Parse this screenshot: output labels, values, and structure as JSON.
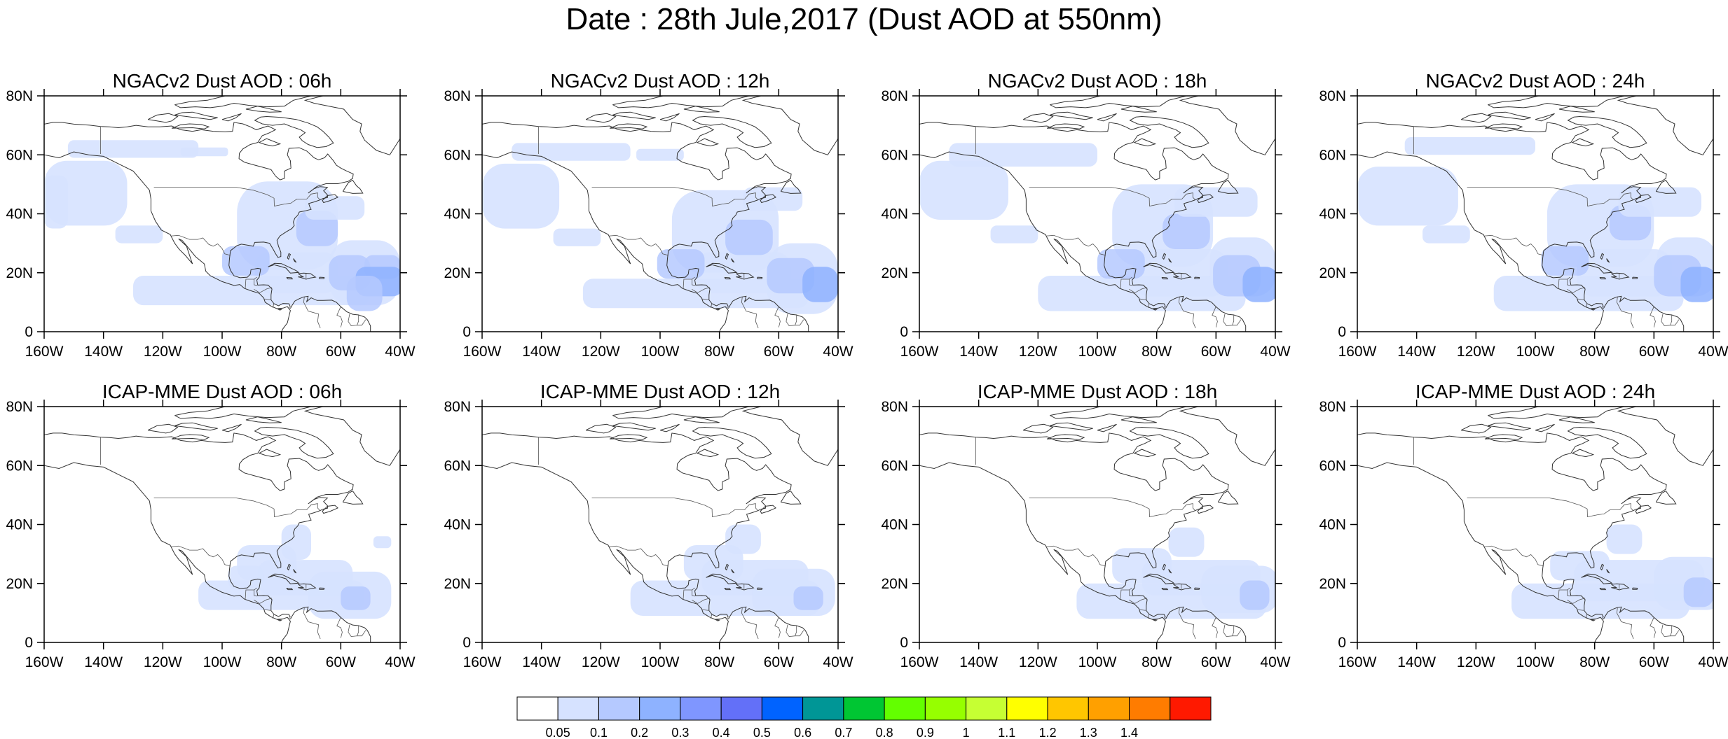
{
  "title": "Date : 28th Jule,2017 (Dust AOD at 550nm)",
  "axes": {
    "lon_ticks": [
      "160W",
      "140W",
      "120W",
      "100W",
      "80W",
      "60W",
      "40W"
    ],
    "lat_ticks": [
      "80N",
      "60N",
      "40N",
      "20N",
      "0"
    ],
    "lon_range": [
      -160,
      -40
    ],
    "lat_range": [
      0,
      80
    ]
  },
  "panels": [
    {
      "title": "NGACv2 Dust AOD : 06h",
      "model": "NGACv2",
      "hour": "06h"
    },
    {
      "title": "NGACv2 Dust AOD : 12h",
      "model": "NGACv2",
      "hour": "12h"
    },
    {
      "title": "NGACv2 Dust AOD : 18h",
      "model": "NGACv2",
      "hour": "18h"
    },
    {
      "title": "NGACv2 Dust AOD : 24h",
      "model": "NGACv2",
      "hour": "24h"
    },
    {
      "title": "ICAP-MME Dust AOD : 06h",
      "model": "ICAP-MME",
      "hour": "06h"
    },
    {
      "title": "ICAP-MME Dust AOD : 12h",
      "model": "ICAP-MME",
      "hour": "12h"
    },
    {
      "title": "ICAP-MME Dust AOD : 18h",
      "model": "ICAP-MME",
      "hour": "18h"
    },
    {
      "title": "ICAP-MME Dust AOD : 24h",
      "model": "ICAP-MME",
      "hour": "24h"
    }
  ],
  "colorbar": {
    "labels": [
      "0.05",
      "0.1",
      "0.2",
      "0.3",
      "0.4",
      "0.5",
      "0.6",
      "0.7",
      "0.8",
      "0.9",
      "1",
      "1.1",
      "1.2",
      "1.3",
      "1.4"
    ],
    "colors": [
      "#ffffff",
      "#d6e2ff",
      "#b5c9ff",
      "#8eb2ff",
      "#7f96ff",
      "#6370f8",
      "#0063ff",
      "#009696",
      "#00c633",
      "#63ff00",
      "#96ff00",
      "#c6ff33",
      "#ffff00",
      "#ffc600",
      "#ffa000",
      "#ff7c00",
      "#ff1900"
    ]
  }
}
